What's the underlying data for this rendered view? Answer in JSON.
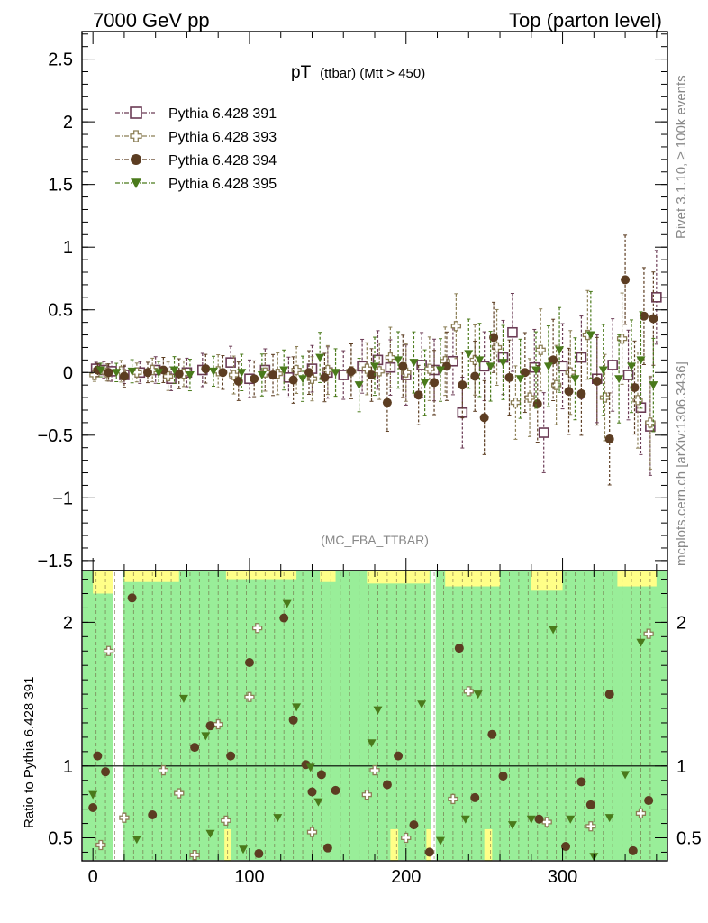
{
  "header": {
    "left": "7000 GeV pp",
    "right": "Top (parton level)"
  },
  "side_labels": {
    "rivet": "Rivet 3.1.10, ≥ 100k events",
    "mcplots": "mcplots.cern.ch [arXiv:1306.3436]"
  },
  "chart_data": [
    {
      "type": "scatter",
      "title_main": "pT",
      "title_sub": "(ttbar) (Mtt > 450)",
      "watermark": "(MC_FBA_TTBAR)",
      "xlim": [
        -7,
        367
      ],
      "ylim": [
        -1.58,
        2.72
      ],
      "y_ticks": [
        -1.5,
        -1,
        -0.5,
        0,
        0.5,
        1,
        1.5,
        2,
        2.5
      ],
      "y_tick_labels": [
        "−1.5",
        "−1",
        "−0.5",
        "0",
        "0.5",
        "1",
        "1.5",
        "2",
        "2.5"
      ],
      "x_ticks": [
        0,
        100,
        200,
        300
      ],
      "legend_position": "top-left",
      "series": [
        {
          "name": "Pythia 6.428 391",
          "marker": "open-square",
          "color": "#6b3b55",
          "points": [
            [
              2,
              0.03
            ],
            [
              7,
              0.02
            ],
            [
              12,
              0.01
            ],
            [
              20,
              -0.02
            ],
            [
              30,
              0.0
            ],
            [
              40,
              0.02
            ],
            [
              50,
              -0.05
            ],
            [
              60,
              0.0
            ],
            [
              70,
              0.02
            ],
            [
              88,
              0.08
            ],
            [
              100,
              -0.05
            ],
            [
              110,
              0.02
            ],
            [
              125,
              -0.04
            ],
            [
              140,
              0.03
            ],
            [
              150,
              0.0
            ],
            [
              160,
              -0.02
            ],
            [
              172,
              0.05
            ],
            [
              182,
              0.1
            ],
            [
              190,
              0.04
            ],
            [
              200,
              -0.02
            ],
            [
              210,
              0.06
            ],
            [
              218,
              0.02
            ],
            [
              230,
              0.09
            ],
            [
              236,
              -0.32
            ],
            [
              250,
              0.05
            ],
            [
              262,
              0.12
            ],
            [
              268,
              0.32
            ],
            [
              282,
              0.04
            ],
            [
              288,
              -0.48
            ],
            [
              300,
              0.05
            ],
            [
              312,
              0.12
            ],
            [
              322,
              -0.05
            ],
            [
              332,
              0.06
            ],
            [
              342,
              -0.02
            ],
            [
              350,
              -0.28
            ],
            [
              356,
              -0.43
            ],
            [
              360,
              0.6
            ]
          ]
        },
        {
          "name": "Pythia 6.428 393",
          "marker": "open-cross",
          "color": "#8b7e55",
          "points": [
            [
              1,
              -0.02
            ],
            [
              9,
              0.0
            ],
            [
              18,
              0.01
            ],
            [
              28,
              0.0
            ],
            [
              38,
              0.02
            ],
            [
              48,
              -0.03
            ],
            [
              58,
              -0.01
            ],
            [
              80,
              0.01
            ],
            [
              90,
              -0.02
            ],
            [
              110,
              0.0
            ],
            [
              118,
              -0.01
            ],
            [
              130,
              0.02
            ],
            [
              140,
              -0.05
            ],
            [
              150,
              0.02
            ],
            [
              165,
              0.01
            ],
            [
              175,
              0.03
            ],
            [
              183,
              0.01
            ],
            [
              190,
              0.12
            ],
            [
              200,
              0.0
            ],
            [
              215,
              0.03
            ],
            [
              225,
              0.09
            ],
            [
              232,
              0.37
            ],
            [
              244,
              0.1
            ],
            [
              258,
              0.2
            ],
            [
              270,
              -0.24
            ],
            [
              279,
              -0.2
            ],
            [
              286,
              0.18
            ],
            [
              296,
              -0.1
            ],
            [
              305,
              0.0
            ],
            [
              316,
              0.3
            ],
            [
              327,
              -0.2
            ],
            [
              338,
              0.27
            ],
            [
              348,
              -0.22
            ],
            [
              356,
              -0.4
            ]
          ]
        },
        {
          "name": "Pythia 6.428 394",
          "marker": "filled-circle",
          "color": "#5c3d22",
          "points": [
            [
              3,
              0.02
            ],
            [
              10,
              0.0
            ],
            [
              20,
              -0.03
            ],
            [
              35,
              0.0
            ],
            [
              45,
              0.02
            ],
            [
              55,
              -0.01
            ],
            [
              72,
              0.03
            ],
            [
              83,
              0.0
            ],
            [
              93,
              -0.07
            ],
            [
              103,
              -0.05
            ],
            [
              115,
              -0.02
            ],
            [
              128,
              -0.06
            ],
            [
              138,
              0.0
            ],
            [
              148,
              -0.04
            ],
            [
              165,
              0.01
            ],
            [
              178,
              -0.02
            ],
            [
              188,
              -0.24
            ],
            [
              198,
              0.05
            ],
            [
              208,
              -0.18
            ],
            [
              218,
              -0.08
            ],
            [
              226,
              0.05
            ],
            [
              236,
              -0.1
            ],
            [
              244,
              -0.03
            ],
            [
              250,
              -0.36
            ],
            [
              256,
              0.28
            ],
            [
              266,
              -0.04
            ],
            [
              276,
              0.0
            ],
            [
              284,
              -0.25
            ],
            [
              294,
              0.1
            ],
            [
              304,
              -0.15
            ],
            [
              312,
              -0.17
            ],
            [
              322,
              -0.07
            ],
            [
              330,
              -0.53
            ],
            [
              340,
              0.74
            ],
            [
              346,
              -0.12
            ],
            [
              352,
              0.45
            ],
            [
              358,
              0.43
            ]
          ]
        },
        {
          "name": "Pythia 6.428 395",
          "marker": "filled-triangle-down",
          "color": "#4a7a1b",
          "points": [
            [
              5,
              0.02
            ],
            [
              15,
              0.0
            ],
            [
              25,
              0.01
            ],
            [
              42,
              0.0
            ],
            [
              52,
              0.02
            ],
            [
              62,
              -0.02
            ],
            [
              77,
              0.01
            ],
            [
              95,
              0.0
            ],
            [
              108,
              -0.02
            ],
            [
              122,
              0.02
            ],
            [
              134,
              -0.05
            ],
            [
              145,
              0.12
            ],
            [
              155,
              0.0
            ],
            [
              170,
              -0.1
            ],
            [
              180,
              0.05
            ],
            [
              195,
              0.1
            ],
            [
              205,
              0.08
            ],
            [
              212,
              -0.08
            ],
            [
              222,
              0.02
            ],
            [
              240,
              0.15
            ],
            [
              247,
              0.1
            ],
            [
              254,
              0.05
            ],
            [
              262,
              0.08
            ],
            [
              273,
              -0.05
            ],
            [
              283,
              0.02
            ],
            [
              291,
              0.05
            ],
            [
              298,
              0.18
            ],
            [
              308,
              -0.05
            ],
            [
              318,
              0.3
            ],
            [
              326,
              0.02
            ],
            [
              336,
              -0.05
            ],
            [
              344,
              0.05
            ],
            [
              350,
              0.1
            ],
            [
              358,
              -0.1
            ]
          ]
        }
      ]
    },
    {
      "type": "ratio",
      "ylabel": "Ratio to Pythia 6.428 391",
      "xlim": [
        -7,
        367
      ],
      "ylim": [
        0.34,
        2.36
      ],
      "y_ticks": [
        0.5,
        1,
        2
      ],
      "y_tick_labels": [
        "0.5",
        "1",
        "2"
      ],
      "x_ticks": [
        0,
        100,
        200,
        300
      ],
      "x_tick_labels": [
        "0",
        "100",
        "200",
        "300"
      ],
      "band_colors": {
        "inner": "#99ee99",
        "outer": "#ffff88"
      },
      "gaps": [
        [
          13,
          19
        ],
        [
          216,
          219
        ]
      ],
      "series": [
        {
          "name": "Pythia 6.428 393",
          "marker": "open-cross",
          "color": "#8b7e55",
          "points": [
            [
              5,
              0.45
            ],
            [
              10,
              1.8
            ],
            [
              20,
              0.64
            ],
            [
              45,
              0.97
            ],
            [
              55,
              0.81
            ],
            [
              65,
              0.38
            ],
            [
              80,
              1.29
            ],
            [
              85,
              0.62
            ],
            [
              100,
              1.48
            ],
            [
              105,
              1.96
            ],
            [
              140,
              0.54
            ],
            [
              175,
              0.8
            ],
            [
              180,
              0.97
            ],
            [
              200,
              0.5
            ],
            [
              230,
              0.77
            ],
            [
              240,
              1.52
            ],
            [
              290,
              0.61
            ],
            [
              318,
              0.58
            ],
            [
              350,
              0.67
            ],
            [
              355,
              1.92
            ]
          ]
        },
        {
          "name": "Pythia 6.428 394",
          "marker": "filled-circle",
          "color": "#5c3d22",
          "points": [
            [
              0,
              0.71
            ],
            [
              3,
              1.07
            ],
            [
              8,
              0.96
            ],
            [
              25,
              2.17
            ],
            [
              38,
              0.66
            ],
            [
              65,
              1.13
            ],
            [
              75,
              1.28
            ],
            [
              88,
              1.07
            ],
            [
              100,
              1.72
            ],
            [
              106,
              0.39
            ],
            [
              122,
              2.03
            ],
            [
              128,
              1.32
            ],
            [
              136,
              1.01
            ],
            [
              140,
              0.82
            ],
            [
              146,
              0.94
            ],
            [
              150,
              0.43
            ],
            [
              155,
              0.83
            ],
            [
              188,
              0.87
            ],
            [
              195,
              1.07
            ],
            [
              205,
              0.59
            ],
            [
              215,
              0.4
            ],
            [
              234,
              1.82
            ],
            [
              244,
              0.78
            ],
            [
              255,
              1.22
            ],
            [
              262,
              0.93
            ],
            [
              285,
              0.63
            ],
            [
              302,
              0.44
            ],
            [
              312,
              0.89
            ],
            [
              318,
              0.73
            ],
            [
              330,
              1.5
            ],
            [
              345,
              0.41
            ],
            [
              355,
              0.76
            ]
          ]
        },
        {
          "name": "Pythia 6.428 395",
          "marker": "filled-triangle-down",
          "color": "#4a7a1b",
          "points": [
            [
              0,
              0.8
            ],
            [
              28,
              0.49
            ],
            [
              58,
              1.47
            ],
            [
              72,
              1.21
            ],
            [
              75,
              0.53
            ],
            [
              96,
              0.42
            ],
            [
              118,
              0.64
            ],
            [
              124,
              2.13
            ],
            [
              130,
              1.41
            ],
            [
              139,
              0.99
            ],
            [
              144,
              0.75
            ],
            [
              178,
              1.16
            ],
            [
              182,
              1.39
            ],
            [
              210,
              1.43
            ],
            [
              222,
              0.48
            ],
            [
              238,
              0.63
            ],
            [
              246,
              1.5
            ],
            [
              268,
              0.59
            ],
            [
              280,
              0.63
            ],
            [
              294,
              1.95
            ],
            [
              305,
              0.63
            ],
            [
              320,
              0.37
            ],
            [
              330,
              0.64
            ],
            [
              340,
              0.94
            ],
            [
              350,
              1.86
            ]
          ]
        }
      ]
    }
  ]
}
